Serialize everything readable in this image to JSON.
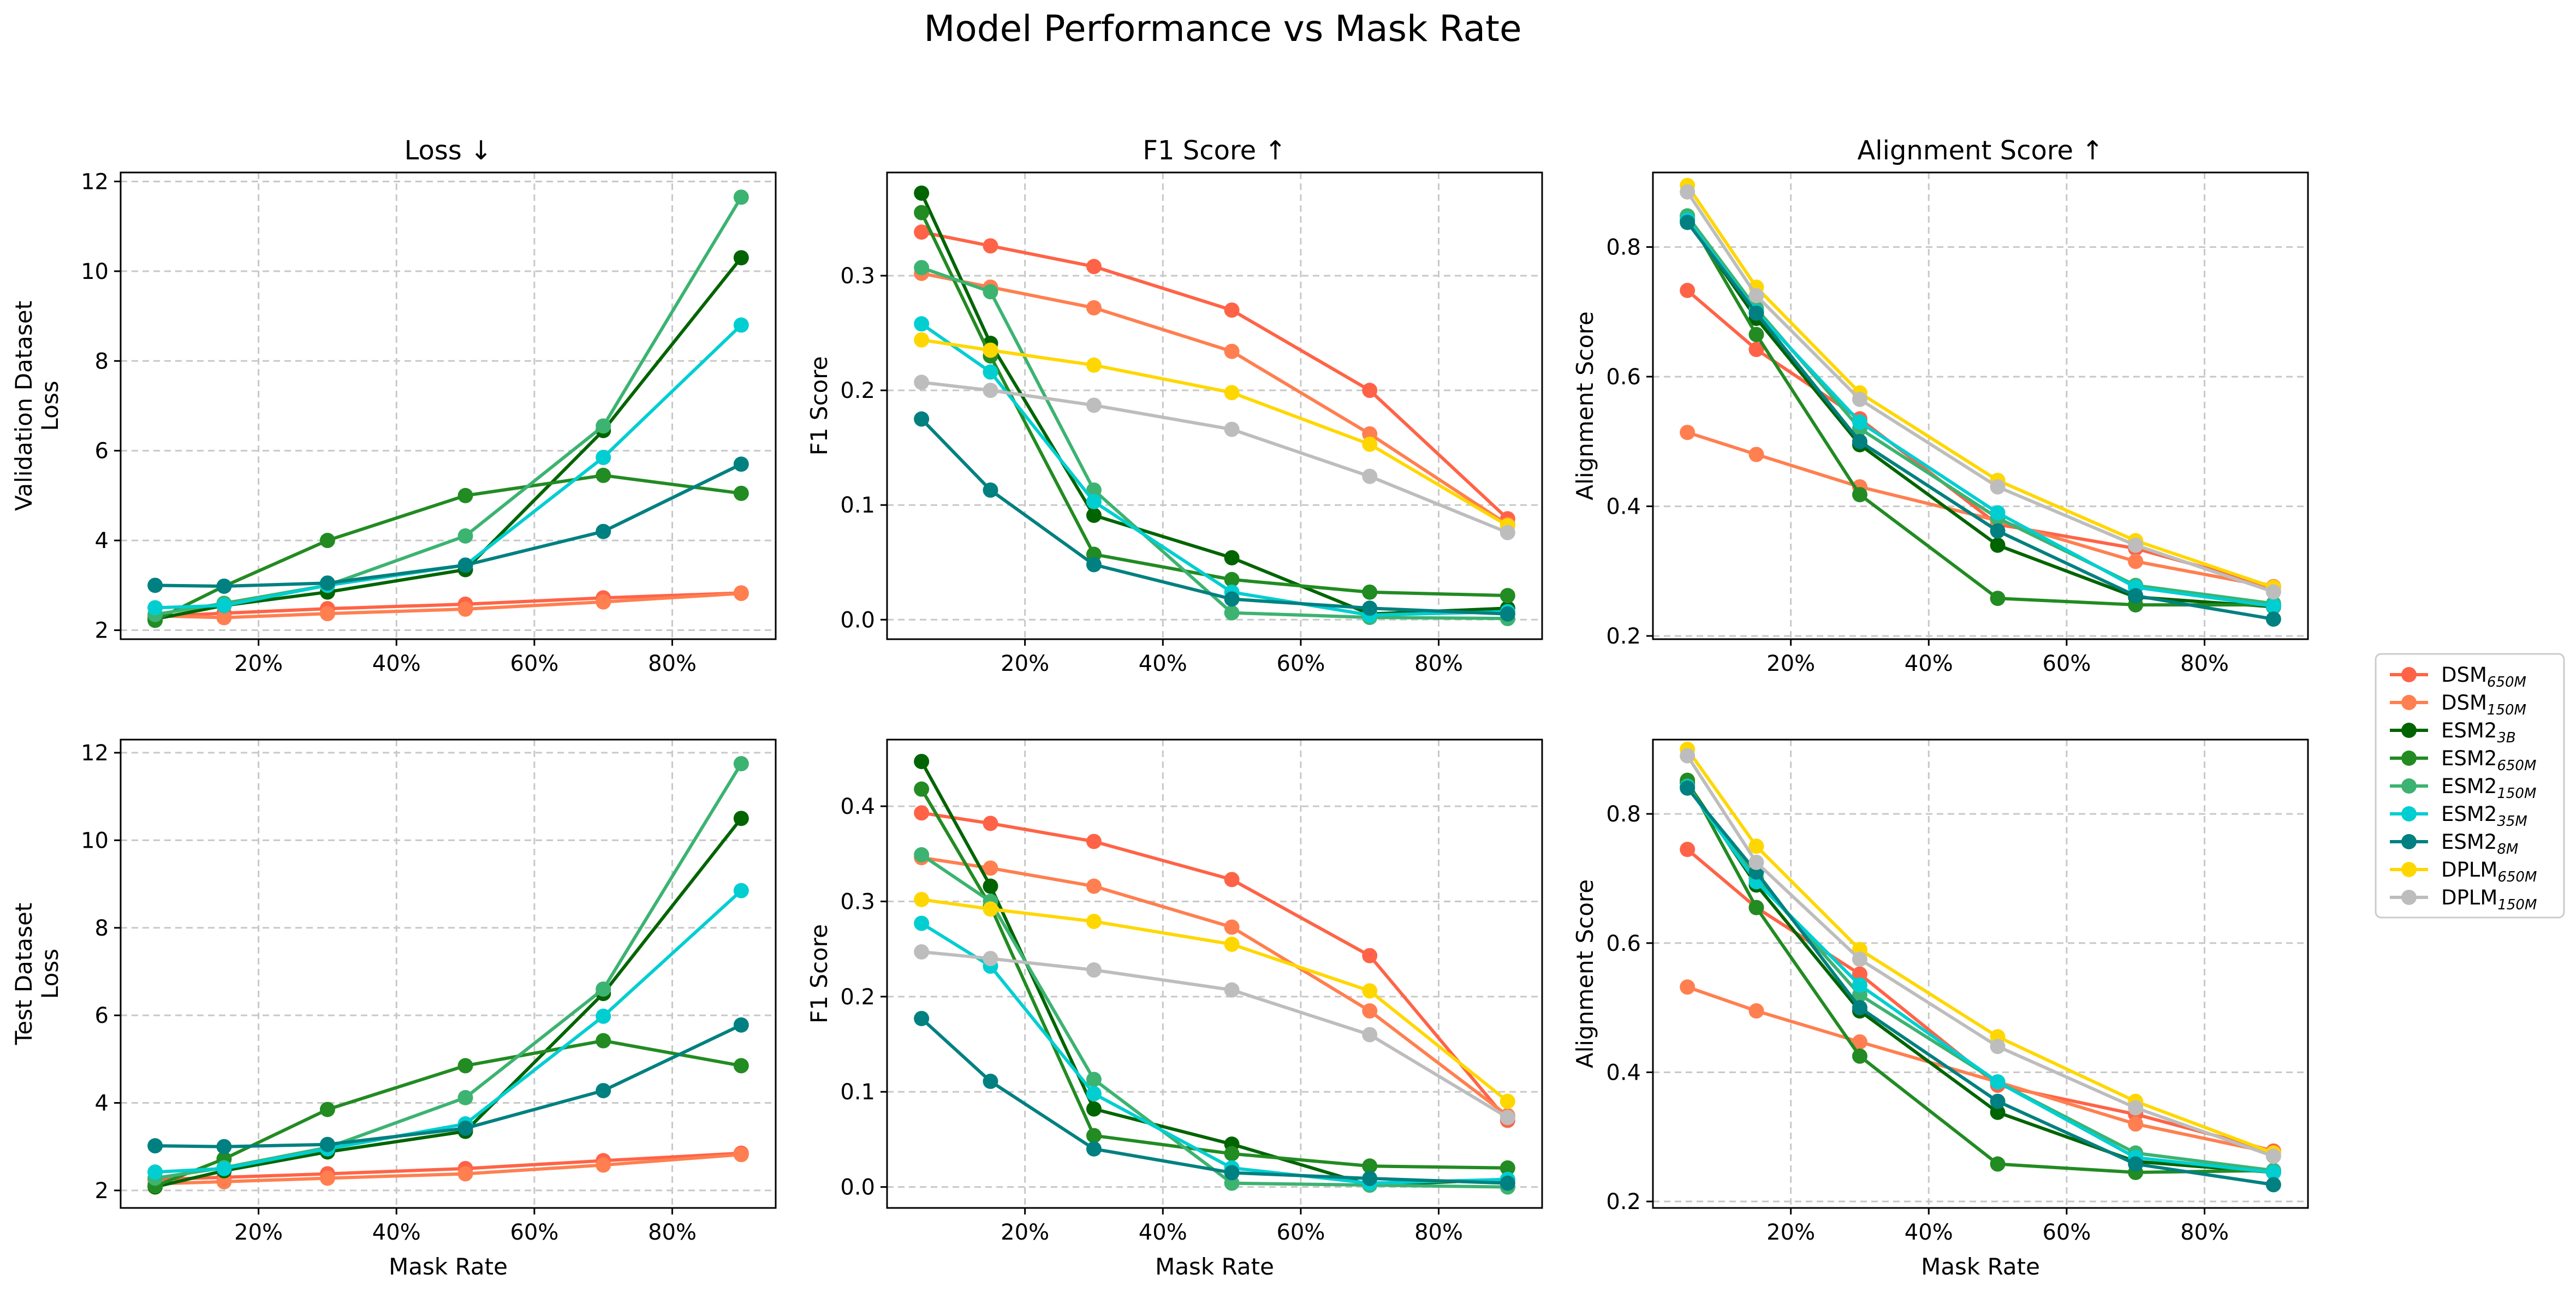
{
  "figure": {
    "title": "Model Performance vs Mask Rate"
  },
  "legend": [
    {
      "base": "DSM",
      "sub": "650M",
      "color": "#FF6347"
    },
    {
      "base": "DSM",
      "sub": "150M",
      "color": "#FF7F50"
    },
    {
      "base": "ESM2",
      "sub": "3B",
      "color": "#006400"
    },
    {
      "base": "ESM2",
      "sub": "650M",
      "color": "#228B22"
    },
    {
      "base": "ESM2",
      "sub": "150M",
      "color": "#3CB371"
    },
    {
      "base": "ESM2",
      "sub": "35M",
      "color": "#00CED1"
    },
    {
      "base": "ESM2",
      "sub": "8M",
      "color": "#008080"
    },
    {
      "base": "DPLM",
      "sub": "650M",
      "color": "#FFD700"
    },
    {
      "base": "DPLM",
      "sub": "150M",
      "color": "#BDBDBD"
    }
  ],
  "chart_data": [
    {
      "id": "loss-val",
      "type": "line",
      "title": "Loss ↓",
      "xlabel": "",
      "ylabel": [
        "Validation Dataset",
        "Loss"
      ],
      "x": [
        5,
        15,
        30,
        50,
        70,
        90
      ],
      "xticks": [
        20,
        40,
        60,
        80
      ],
      "xtick_format": "percent",
      "xlim": [
        0,
        95
      ],
      "yticks": [
        2,
        4,
        6,
        8,
        10,
        12
      ],
      "ytick_decimals": 0,
      "ylim": [
        1.8,
        12.2
      ],
      "grid": true,
      "series": [
        {
          "name": "DSM650M",
          "values": [
            2.3,
            2.38,
            2.48,
            2.58,
            2.72,
            2.83
          ]
        },
        {
          "name": "DSM150M",
          "values": [
            2.32,
            2.28,
            2.37,
            2.47,
            2.63,
            2.82
          ]
        },
        {
          "name": "ESM2 3B",
          "values": [
            2.25,
            2.55,
            2.85,
            3.35,
            6.45,
            10.3
          ]
        },
        {
          "name": "ESM2 650M",
          "values": [
            2.22,
            2.98,
            4.0,
            5.0,
            5.45,
            5.05
          ]
        },
        {
          "name": "ESM2 150M",
          "values": [
            2.35,
            2.6,
            3.0,
            4.1,
            6.55,
            11.65
          ]
        },
        {
          "name": "ESM2 35M",
          "values": [
            2.5,
            2.55,
            3.0,
            3.45,
            5.85,
            8.8
          ]
        },
        {
          "name": "ESM2 8M",
          "values": [
            3.0,
            2.98,
            3.05,
            3.45,
            4.2,
            5.7
          ]
        }
      ]
    },
    {
      "id": "f1-val",
      "type": "line",
      "title": "F1 Score ↑",
      "xlabel": "",
      "ylabel": [
        "F1 Score"
      ],
      "x": [
        5,
        15,
        30,
        50,
        70,
        90
      ],
      "xticks": [
        20,
        40,
        60,
        80
      ],
      "xtick_format": "percent",
      "xlim": [
        0,
        95
      ],
      "yticks": [
        0.0,
        0.1,
        0.2,
        0.3
      ],
      "ytick_decimals": 1,
      "ylim": [
        -0.017,
        0.39
      ],
      "grid": true,
      "series": [
        {
          "name": "DSM650M",
          "values": [
            0.338,
            0.326,
            0.308,
            0.27,
            0.2,
            0.088
          ]
        },
        {
          "name": "DSM150M",
          "values": [
            0.302,
            0.29,
            0.272,
            0.234,
            0.162,
            0.083
          ]
        },
        {
          "name": "ESM2 3B",
          "values": [
            0.372,
            0.241,
            0.091,
            0.054,
            0.005,
            0.01
          ]
        },
        {
          "name": "ESM2 650M",
          "values": [
            0.355,
            0.23,
            0.057,
            0.035,
            0.024,
            0.021
          ]
        },
        {
          "name": "ESM2 150M",
          "values": [
            0.307,
            0.286,
            0.113,
            0.006,
            0.002,
            0.001
          ]
        },
        {
          "name": "ESM2 35M",
          "values": [
            0.258,
            0.216,
            0.103,
            0.024,
            0.004,
            0.007
          ]
        },
        {
          "name": "ESM2 8M",
          "values": [
            0.175,
            0.113,
            0.048,
            0.018,
            0.01,
            0.005
          ]
        },
        {
          "name": "DPLM650M",
          "values": [
            0.244,
            0.235,
            0.222,
            0.198,
            0.153,
            0.082
          ]
        },
        {
          "name": "DPLM150M",
          "values": [
            0.207,
            0.2,
            0.187,
            0.166,
            0.125,
            0.076
          ]
        }
      ]
    },
    {
      "id": "align-val",
      "type": "line",
      "title": "Alignment Score ↑",
      "xlabel": "",
      "ylabel": [
        "Alignment Score"
      ],
      "x": [
        5,
        15,
        30,
        50,
        70,
        90
      ],
      "xticks": [
        20,
        40,
        60,
        80
      ],
      "xtick_format": "percent",
      "xlim": [
        0,
        95
      ],
      "yticks": [
        0.2,
        0.4,
        0.6,
        0.8
      ],
      "ytick_decimals": 1,
      "ylim": [
        0.195,
        0.915
      ],
      "grid": true,
      "series": [
        {
          "name": "DSM650M",
          "values": [
            0.733,
            0.642,
            0.535,
            0.372,
            0.335,
            0.276
          ]
        },
        {
          "name": "DSM150M",
          "values": [
            0.514,
            0.48,
            0.43,
            0.378,
            0.315,
            0.275
          ]
        },
        {
          "name": "ESM2 3B",
          "values": [
            0.842,
            0.69,
            0.495,
            0.34,
            0.26,
            0.245
          ]
        },
        {
          "name": "ESM2 650M",
          "values": [
            0.848,
            0.665,
            0.418,
            0.258,
            0.248,
            0.248
          ]
        },
        {
          "name": "ESM2 150M",
          "values": [
            0.848,
            0.705,
            0.52,
            0.382,
            0.278,
            0.25
          ]
        },
        {
          "name": "ESM2 35M",
          "values": [
            0.842,
            0.7,
            0.53,
            0.39,
            0.275,
            0.246
          ]
        },
        {
          "name": "ESM2 8M",
          "values": [
            0.838,
            0.698,
            0.5,
            0.362,
            0.262,
            0.226
          ]
        },
        {
          "name": "DPLM650M",
          "values": [
            0.895,
            0.738,
            0.575,
            0.44,
            0.347,
            0.275
          ]
        },
        {
          "name": "DPLM150M",
          "values": [
            0.885,
            0.725,
            0.565,
            0.43,
            0.34,
            0.268
          ]
        }
      ]
    },
    {
      "id": "loss-test",
      "type": "line",
      "title": "",
      "xlabel": "Mask Rate",
      "ylabel": [
        "Test Dataset",
        "Loss"
      ],
      "x": [
        5,
        15,
        30,
        50,
        70,
        90
      ],
      "xticks": [
        20,
        40,
        60,
        80
      ],
      "xtick_format": "percent",
      "xlim": [
        0,
        95
      ],
      "yticks": [
        2,
        4,
        6,
        8,
        10,
        12
      ],
      "ytick_decimals": 0,
      "ylim": [
        1.6,
        12.3
      ],
      "grid": true,
      "series": [
        {
          "name": "DSM650M",
          "values": [
            2.25,
            2.3,
            2.38,
            2.5,
            2.68,
            2.85
          ]
        },
        {
          "name": "DSM150M",
          "values": [
            2.15,
            2.2,
            2.28,
            2.38,
            2.58,
            2.82
          ]
        },
        {
          "name": "ESM2 3B",
          "values": [
            2.08,
            2.45,
            2.88,
            3.35,
            6.5,
            10.5
          ]
        },
        {
          "name": "ESM2 650M",
          "values": [
            2.1,
            2.72,
            3.85,
            4.85,
            5.42,
            4.85
          ]
        },
        {
          "name": "ESM2 150M",
          "values": [
            2.28,
            2.52,
            2.98,
            4.12,
            6.6,
            11.75
          ]
        },
        {
          "name": "ESM2 35M",
          "values": [
            2.42,
            2.5,
            2.95,
            3.52,
            5.98,
            8.85
          ]
        },
        {
          "name": "ESM2 8M",
          "values": [
            3.02,
            3.0,
            3.05,
            3.42,
            4.28,
            5.78
          ]
        }
      ]
    },
    {
      "id": "f1-test",
      "type": "line",
      "title": "",
      "xlabel": "Mask Rate",
      "ylabel": [
        "F1 Score"
      ],
      "x": [
        5,
        15,
        30,
        50,
        70,
        90
      ],
      "xticks": [
        20,
        40,
        60,
        80
      ],
      "xtick_format": "percent",
      "xlim": [
        0,
        95
      ],
      "yticks": [
        0.0,
        0.1,
        0.2,
        0.3,
        0.4
      ],
      "ytick_decimals": 1,
      "ylim": [
        -0.022,
        0.47
      ],
      "grid": true,
      "series": [
        {
          "name": "DSM650M",
          "values": [
            0.393,
            0.382,
            0.363,
            0.323,
            0.243,
            0.07
          ]
        },
        {
          "name": "DSM150M",
          "values": [
            0.346,
            0.335,
            0.316,
            0.273,
            0.185,
            0.075
          ]
        },
        {
          "name": "ESM2 3B",
          "values": [
            0.447,
            0.316,
            0.082,
            0.045,
            0.002,
            0.008
          ]
        },
        {
          "name": "ESM2 650M",
          "values": [
            0.418,
            0.295,
            0.054,
            0.035,
            0.022,
            0.02
          ]
        },
        {
          "name": "ESM2 150M",
          "values": [
            0.349,
            0.3,
            0.113,
            0.004,
            0.002,
            0.0
          ]
        },
        {
          "name": "ESM2 35M",
          "values": [
            0.277,
            0.232,
            0.098,
            0.02,
            0.004,
            0.008
          ]
        },
        {
          "name": "ESM2 8M",
          "values": [
            0.177,
            0.111,
            0.04,
            0.015,
            0.009,
            0.004
          ]
        },
        {
          "name": "DPLM650M",
          "values": [
            0.302,
            0.292,
            0.279,
            0.255,
            0.206,
            0.09
          ]
        },
        {
          "name": "DPLM150M",
          "values": [
            0.247,
            0.24,
            0.228,
            0.207,
            0.16,
            0.073
          ]
        }
      ]
    },
    {
      "id": "align-test",
      "type": "line",
      "title": "",
      "xlabel": "Mask Rate",
      "ylabel": [
        "Alignment Score"
      ],
      "x": [
        5,
        15,
        30,
        50,
        70,
        90
      ],
      "xticks": [
        20,
        40,
        60,
        80
      ],
      "xtick_format": "percent",
      "xlim": [
        0,
        95
      ],
      "yticks": [
        0.2,
        0.4,
        0.6,
        0.8
      ],
      "ytick_decimals": 1,
      "ylim": [
        0.19,
        0.915
      ],
      "grid": true,
      "series": [
        {
          "name": "DSM650M",
          "values": [
            0.745,
            0.655,
            0.552,
            0.38,
            0.335,
            0.278
          ]
        },
        {
          "name": "DSM150M",
          "values": [
            0.532,
            0.495,
            0.447,
            0.385,
            0.32,
            0.275
          ]
        },
        {
          "name": "ESM2 3B",
          "values": [
            0.848,
            0.69,
            0.495,
            0.338,
            0.262,
            0.245
          ]
        },
        {
          "name": "ESM2 650M",
          "values": [
            0.852,
            0.655,
            0.425,
            0.258,
            0.245,
            0.248
          ]
        },
        {
          "name": "ESM2 150M",
          "values": [
            0.843,
            0.7,
            0.52,
            0.385,
            0.275,
            0.248
          ]
        },
        {
          "name": "ESM2 35M",
          "values": [
            0.842,
            0.695,
            0.535,
            0.385,
            0.268,
            0.245
          ]
        },
        {
          "name": "ESM2 8M",
          "values": [
            0.84,
            0.71,
            0.5,
            0.355,
            0.258,
            0.226
          ]
        },
        {
          "name": "DPLM650M",
          "values": [
            0.9,
            0.75,
            0.59,
            0.455,
            0.355,
            0.275
          ]
        },
        {
          "name": "DPLM150M",
          "values": [
            0.89,
            0.725,
            0.575,
            0.44,
            0.345,
            0.27
          ]
        }
      ]
    }
  ]
}
